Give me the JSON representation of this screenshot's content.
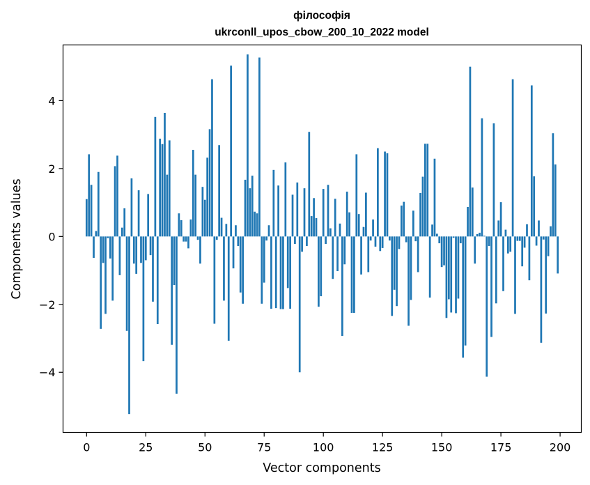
{
  "chart_data": {
    "type": "bar",
    "title": "філософія",
    "subtitle": "ukrconll_upos_cbow_200_10_2022 model",
    "xlabel": "Vector components",
    "ylabel": "Components values",
    "xlim": [
      -9.95,
      208.95
    ],
    "ylim": [
      -5.77,
      5.64
    ],
    "xticks": [
      0,
      25,
      50,
      75,
      100,
      125,
      150,
      175,
      200
    ],
    "yticks": [
      -4,
      -2,
      0,
      2,
      4
    ],
    "ytick_labels": [
      "−4",
      "−2",
      "0",
      "2",
      "4"
    ],
    "bar_color": "#1f77b4",
    "values": [
      1.1,
      2.42,
      1.52,
      -0.63,
      0.16,
      1.9,
      -2.72,
      -0.78,
      -2.28,
      -0.05,
      -0.65,
      -1.89,
      2.07,
      2.38,
      -1.14,
      0.26,
      0.83,
      -2.78,
      -5.23,
      1.71,
      -0.8,
      -1.1,
      1.36,
      -0.78,
      -3.67,
      -0.7,
      1.25,
      -0.55,
      -1.92,
      3.52,
      -2.58,
      2.88,
      2.72,
      3.64,
      1.82,
      2.83,
      -3.19,
      -1.43,
      -4.63,
      0.68,
      0.48,
      -0.15,
      -0.15,
      -0.35,
      0.5,
      2.55,
      1.82,
      -0.1,
      -0.8,
      1.46,
      1.08,
      2.32,
      3.16,
      4.63,
      -2.57,
      -0.1,
      2.69,
      0.55,
      -1.89,
      0.37,
      -3.07,
      5.03,
      -0.94,
      0.33,
      -0.28,
      -1.65,
      -1.98,
      1.67,
      5.36,
      1.42,
      1.79,
      0.73,
      0.68,
      5.27,
      -1.98,
      -1.36,
      -0.12,
      0.33,
      -2.13,
      1.96,
      -2.11,
      1.5,
      -2.14,
      -2.14,
      2.18,
      -1.52,
      -2.13,
      1.23,
      -0.22,
      1.59,
      -4.0,
      -0.45,
      1.42,
      -0.28,
      3.08,
      0.6,
      1.13,
      0.54,
      -2.07,
      -1.76,
      1.4,
      -0.22,
      1.52,
      0.24,
      -1.25,
      1.11,
      -1.02,
      0.38,
      -2.93,
      -0.82,
      1.32,
      0.71,
      -2.25,
      -2.25,
      2.42,
      0.66,
      -1.12,
      0.28,
      1.29,
      -1.05,
      -0.12,
      0.5,
      -0.3,
      2.6,
      -0.43,
      -0.34,
      2.5,
      2.45,
      -0.12,
      -2.34,
      -1.57,
      -2.05,
      -0.37,
      0.91,
      1.02,
      -0.17,
      -2.63,
      -1.87,
      0.76,
      -0.14,
      -1.05,
      1.28,
      1.76,
      2.73,
      2.73,
      -1.8,
      0.35,
      2.29,
      0.08,
      -0.2,
      -0.9,
      -0.85,
      -2.4,
      -1.85,
      -2.24,
      -0.04,
      -2.26,
      -1.83,
      -0.2,
      -3.57,
      -3.21,
      0.87,
      5.0,
      1.44,
      -0.8,
      0.07,
      0.11,
      3.48,
      0.02,
      -4.13,
      -0.28,
      -2.96,
      3.33,
      -1.97,
      0.47,
      1.01,
      -1.61,
      0.2,
      -0.5,
      -0.45,
      4.63,
      -2.28,
      -0.13,
      -0.13,
      -0.88,
      -0.33,
      0.36,
      -1.29,
      4.45,
      1.77,
      -0.27,
      0.47,
      -3.13,
      -0.09,
      -2.27,
      -0.58,
      0.3,
      3.04,
      2.12,
      -1.09
    ]
  }
}
